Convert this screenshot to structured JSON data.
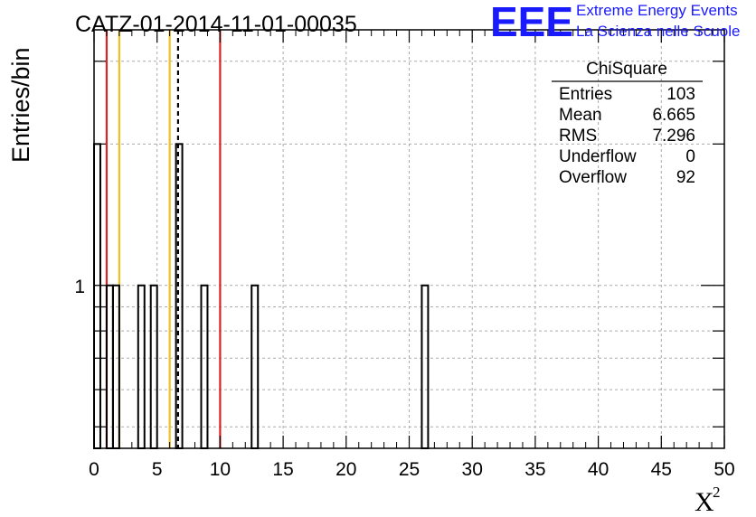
{
  "title": "CATZ-01-2014-11-01-00035",
  "logo": {
    "mark": "EEE",
    "line1": "Extreme Energy Events",
    "line2": "La Scienza nelle Scuole",
    "color": "#1a1aff"
  },
  "stats_box": {
    "name": "ChiSquare",
    "rows": [
      {
        "label": "Entries",
        "value": "103"
      },
      {
        "label": "Mean",
        "value": "6.665"
      },
      {
        "label": "RMS",
        "value": "7.296"
      },
      {
        "label": "Underflow",
        "value": "0"
      },
      {
        "label": "Overflow",
        "value": "92"
      }
    ]
  },
  "chart_data": {
    "type": "bar",
    "title": "CATZ-01-2014-11-01-00035",
    "xlabel": "X",
    "xlabel_superscript": "2",
    "ylabel": "Entries/bin",
    "xlim": [
      0,
      50
    ],
    "ylim": [
      0.45,
      3.5
    ],
    "yscale": "log",
    "bin_width": 0.5,
    "x_ticks": [
      0,
      5,
      10,
      15,
      20,
      25,
      30,
      35,
      40,
      45,
      50
    ],
    "y_tick_labels": [
      {
        "value": 1,
        "label": "1"
      }
    ],
    "grid": true,
    "bins": [
      {
        "x": 0.0,
        "y": 2
      },
      {
        "x": 1.0,
        "y": 1
      },
      {
        "x": 1.5,
        "y": 1
      },
      {
        "x": 3.5,
        "y": 1
      },
      {
        "x": 4.5,
        "y": 1
      },
      {
        "x": 6.5,
        "y": 2
      },
      {
        "x": 8.5,
        "y": 1
      },
      {
        "x": 12.5,
        "y": 1
      },
      {
        "x": 26.0,
        "y": 1
      }
    ],
    "vertical_lines": [
      {
        "x": 1.0,
        "color": "#dd2222",
        "style": "solid"
      },
      {
        "x": 2.0,
        "color": "#f0c020",
        "style": "solid"
      },
      {
        "x": 6.0,
        "color": "#f0c020",
        "style": "solid"
      },
      {
        "x": 6.665,
        "color": "#000000",
        "style": "dashed"
      },
      {
        "x": 10.0,
        "color": "#dd2222",
        "style": "solid"
      }
    ]
  }
}
